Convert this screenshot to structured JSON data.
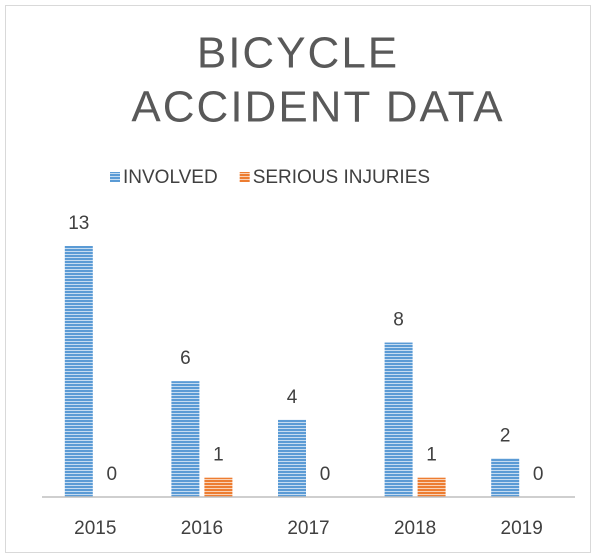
{
  "chart_data": {
    "type": "bar",
    "title_lines": [
      "BICYCLE",
      "ACCIDENT DATA"
    ],
    "categories": [
      "2015",
      "2016",
      "2017",
      "2018",
      "2019"
    ],
    "series": [
      {
        "name": "INVOLVED",
        "color": "#5b9bd5",
        "values": [
          13,
          6,
          4,
          8,
          2
        ]
      },
      {
        "name": "SERIOUS INJURIES",
        "color": "#ed7d31",
        "values": [
          0,
          1,
          0,
          1,
          0
        ]
      }
    ],
    "legend": "top"
  }
}
